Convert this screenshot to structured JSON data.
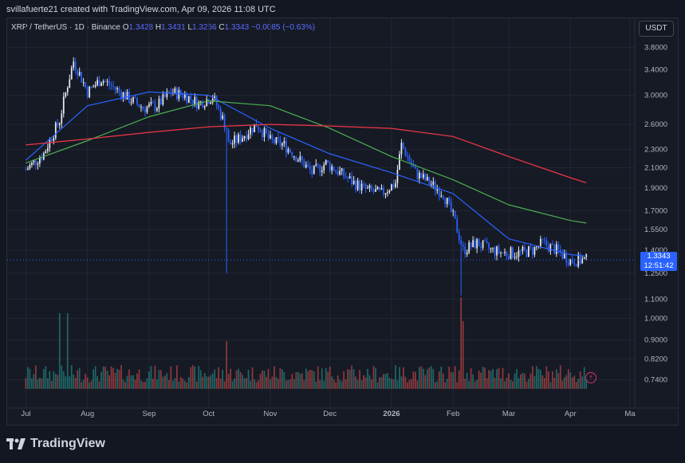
{
  "credit": "svillafuerte21 created with TradingView.com, Apr 09, 2026 11:08 UTC",
  "legend": {
    "symbol": "XRP / TetherUS · 1D · Binance",
    "open_label": "O",
    "open": "1.3428",
    "high_label": "H",
    "high": "1.3431",
    "low_label": "L",
    "low": "1.3256",
    "close_label": "C",
    "close": "1.3343",
    "change": "−0.0085 (−0.63%)"
  },
  "quote_currency": "USDT",
  "last_price": {
    "value": "1.3343",
    "countdown": "12:51:42"
  },
  "branding": "TradingView",
  "colors": {
    "up": "#e6e9f0",
    "down": "#2962ff",
    "ma_short": "#2962ff",
    "ma_mid": "#4caf50",
    "ma_long": "#f23645",
    "vol_up": "#26a69a",
    "vol_down": "#ef5350"
  },
  "chart_data": {
    "type": "candlestick",
    "y_scale": "log",
    "ylim": [
      0.68,
      4.1
    ],
    "y_ticks": [
      "3.8000",
      "3.4000",
      "3.0000",
      "2.6000",
      "2.3000",
      "2.1000",
      "1.9000",
      "1.7000",
      "1.5500",
      "1.4000",
      "1.2500",
      "1.1000",
      "1.0000",
      "0.9000",
      "0.8200",
      "0.7400"
    ],
    "x_ticks": [
      "Jul",
      "Aug",
      "Sep",
      "Oct",
      "Nov",
      "Dec",
      "2026",
      "Feb",
      "Mar",
      "Apr",
      "Ma"
    ],
    "series": [
      {
        "name": "close",
        "x": [
          "2025-07-01",
          "2025-07-10",
          "2025-07-18",
          "2025-07-25",
          "2025-08-01",
          "2025-08-08",
          "2025-08-15",
          "2025-08-22",
          "2025-08-29",
          "2025-09-05",
          "2025-09-12",
          "2025-09-19",
          "2025-09-26",
          "2025-10-03",
          "2025-10-10",
          "2025-10-11",
          "2025-10-18",
          "2025-10-25",
          "2025-11-01",
          "2025-11-08",
          "2025-11-15",
          "2025-11-22",
          "2025-11-29",
          "2025-12-06",
          "2025-12-13",
          "2025-12-20",
          "2025-12-27",
          "2026-01-03",
          "2026-01-06",
          "2026-01-13",
          "2026-01-20",
          "2026-01-27",
          "2026-02-01",
          "2026-02-05",
          "2026-02-06",
          "2026-02-13",
          "2026-02-20",
          "2026-02-27",
          "2026-03-06",
          "2026-03-13",
          "2026-03-18",
          "2026-03-25",
          "2026-04-01",
          "2026-04-09"
        ],
        "y": [
          2.08,
          2.25,
          2.65,
          3.55,
          3.05,
          3.25,
          3.1,
          2.95,
          2.82,
          2.85,
          3.05,
          3.0,
          2.88,
          2.98,
          2.55,
          2.35,
          2.45,
          2.6,
          2.4,
          2.35,
          2.2,
          2.05,
          2.15,
          2.05,
          1.95,
          1.88,
          1.85,
          1.95,
          2.35,
          2.05,
          1.95,
          1.85,
          1.65,
          1.45,
          1.4,
          1.45,
          1.4,
          1.38,
          1.38,
          1.4,
          1.45,
          1.4,
          1.33,
          1.3343
        ]
      },
      {
        "name": "ma_short",
        "x": [
          "2025-07-01",
          "2025-08-01",
          "2025-09-01",
          "2025-10-01",
          "2025-11-01",
          "2025-12-01",
          "2026-01-01",
          "2026-02-01",
          "2026-03-01",
          "2026-04-01",
          "2026-04-09"
        ],
        "y": [
          2.18,
          2.85,
          3.05,
          3.0,
          2.55,
          2.25,
          2.05,
          1.85,
          1.48,
          1.37,
          1.36
        ]
      },
      {
        "name": "ma_mid",
        "x": [
          "2025-07-01",
          "2025-08-01",
          "2025-09-01",
          "2025-10-01",
          "2025-11-01",
          "2025-12-01",
          "2026-01-01",
          "2026-02-01",
          "2026-03-01",
          "2026-04-01",
          "2026-04-09"
        ],
        "y": [
          2.15,
          2.4,
          2.7,
          2.92,
          2.85,
          2.55,
          2.22,
          1.98,
          1.75,
          1.62,
          1.6
        ]
      },
      {
        "name": "ma_long",
        "x": [
          "2025-07-01",
          "2025-08-01",
          "2025-09-01",
          "2025-10-01",
          "2025-11-01",
          "2025-12-01",
          "2026-01-01",
          "2026-02-01",
          "2026-03-01",
          "2026-04-01",
          "2026-04-09"
        ],
        "y": [
          2.35,
          2.42,
          2.5,
          2.57,
          2.6,
          2.58,
          2.55,
          2.45,
          2.22,
          2.0,
          1.95
        ]
      }
    ]
  }
}
